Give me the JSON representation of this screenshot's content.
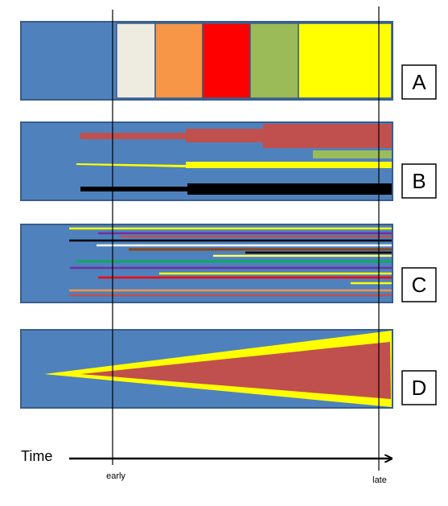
{
  "panels": [
    {
      "id": "A",
      "label": "A"
    },
    {
      "id": "B",
      "label": "B"
    },
    {
      "id": "C",
      "label": "C"
    },
    {
      "id": "D",
      "label": "D"
    }
  ],
  "axis": {
    "title": "Time",
    "early_label": "early",
    "late_label": "late"
  },
  "colors": {
    "background_blue": "#4f81bd",
    "panel_border": "#385d8a",
    "red": "#c0504d",
    "bright_red": "#ff0000",
    "yellow": "#ffff00",
    "green": "#9bbb59",
    "orange": "#f79646",
    "cream": "#eeece1",
    "black": "#000000"
  }
}
